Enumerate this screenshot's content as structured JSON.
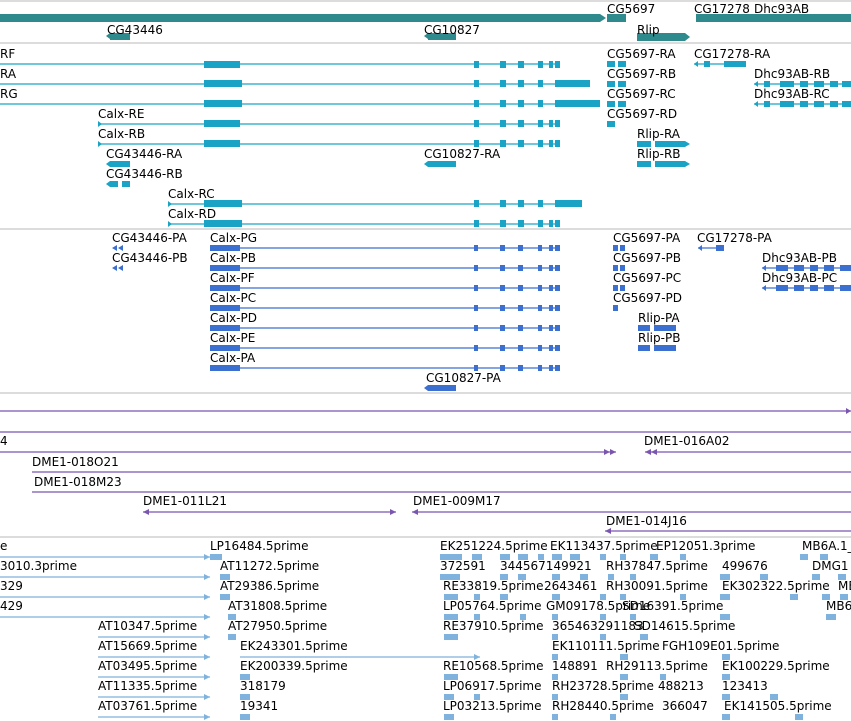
{
  "colors": {
    "gene": "#2f8a8d",
    "transcript": "#1aa3c4",
    "protein": "#3b6fd0",
    "clone": "#7b55b0",
    "est": "#7fb2dc",
    "divider": "#b9b9b9"
  },
  "tracks": {
    "genes": [
      {
        "label": "CG43446",
        "name": "gene-CG43446"
      },
      {
        "label": "CG10827",
        "name": "gene-CG10827"
      },
      {
        "label": "CG5697",
        "name": "gene-CG5697"
      },
      {
        "label": "CG17278",
        "name": "gene-CG17278"
      },
      {
        "label": "Dhc93AB",
        "name": "gene-Dhc93AB"
      },
      {
        "label": "Rlip",
        "name": "gene-Rlip"
      }
    ],
    "transcripts": [
      {
        "label": "RF",
        "name": "transcript-label-RF"
      },
      {
        "label": "RA",
        "name": "transcript-label-RA"
      },
      {
        "label": "RG",
        "name": "transcript-label-RG"
      },
      {
        "label": "Calx-RE",
        "name": "transcript-label-Calx-RE"
      },
      {
        "label": "Calx-RB",
        "name": "transcript-label-Calx-RB"
      },
      {
        "label": "CG43446-RA",
        "name": "transcript-label-CG43446-RA"
      },
      {
        "label": "CG43446-RB",
        "name": "transcript-label-CG43446-RB"
      },
      {
        "label": "Calx-RC",
        "name": "transcript-label-Calx-RC"
      },
      {
        "label": "Calx-RD",
        "name": "transcript-label-Calx-RD"
      },
      {
        "label": "CG10827-RA",
        "name": "transcript-label-CG10827-RA"
      },
      {
        "label": "CG5697-RA",
        "name": "transcript-label-CG5697-RA"
      },
      {
        "label": "CG5697-RB",
        "name": "transcript-label-CG5697-RB"
      },
      {
        "label": "CG5697-RC",
        "name": "transcript-label-CG5697-RC"
      },
      {
        "label": "CG5697-RD",
        "name": "transcript-label-CG5697-RD"
      },
      {
        "label": "Rlip-RA",
        "name": "transcript-label-Rlip-RA"
      },
      {
        "label": "Rlip-RB",
        "name": "transcript-label-Rlip-RB"
      },
      {
        "label": "CG17278-RA",
        "name": "transcript-label-CG17278-RA"
      },
      {
        "label": "Dhc93AB-RB",
        "name": "transcript-label-Dhc93AB-RB"
      },
      {
        "label": "Dhc93AB-RC",
        "name": "transcript-label-Dhc93AB-RC"
      }
    ],
    "proteins": [
      {
        "label": "CG43446-PA",
        "name": "protein-label-CG43446-PA"
      },
      {
        "label": "CG43446-PB",
        "name": "protein-label-CG43446-PB"
      },
      {
        "label": "Calx-PG",
        "name": "protein-label-Calx-PG"
      },
      {
        "label": "Calx-PB",
        "name": "protein-label-Calx-PB"
      },
      {
        "label": "Calx-PF",
        "name": "protein-label-Calx-PF"
      },
      {
        "label": "Calx-PC",
        "name": "protein-label-Calx-PC"
      },
      {
        "label": "Calx-PD",
        "name": "protein-label-Calx-PD"
      },
      {
        "label": "Calx-PE",
        "name": "protein-label-Calx-PE"
      },
      {
        "label": "Calx-PA",
        "name": "protein-label-Calx-PA"
      },
      {
        "label": "CG10827-PA",
        "name": "protein-label-CG10827-PA"
      },
      {
        "label": "CG5697-PA",
        "name": "protein-label-CG5697-PA"
      },
      {
        "label": "CG5697-PB",
        "name": "protein-label-CG5697-PB"
      },
      {
        "label": "CG5697-PC",
        "name": "protein-label-CG5697-PC"
      },
      {
        "label": "CG5697-PD",
        "name": "protein-label-CG5697-PD"
      },
      {
        "label": "Rlip-PA",
        "name": "protein-label-Rlip-PA"
      },
      {
        "label": "Rlip-PB",
        "name": "protein-label-Rlip-PB"
      },
      {
        "label": "CG17278-PA",
        "name": "protein-label-CG17278-PA"
      },
      {
        "label": "Dhc93AB-PB",
        "name": "protein-label-Dhc93AB-PB"
      },
      {
        "label": "Dhc93AB-PC",
        "name": "protein-label-Dhc93AB-PC"
      }
    ],
    "clones": [
      {
        "label": "4",
        "name": "clone-label-partial-4"
      },
      {
        "label": "DME1-016A02",
        "name": "clone-label-DME1-016A02"
      },
      {
        "label": "DME1-018O21",
        "name": "clone-label-DME1-018O21"
      },
      {
        "label": "DME1-018M23",
        "name": "clone-label-DME1-018M23"
      },
      {
        "label": "DME1-011L21",
        "name": "clone-label-DME1-011L21"
      },
      {
        "label": "DME1-009M17",
        "name": "clone-label-DME1-009M17"
      },
      {
        "label": "DME1-014J16",
        "name": "clone-label-DME1-014J16"
      }
    ],
    "ests": [
      {
        "label": "e",
        "name": "est-label-partial-e"
      },
      {
        "label": "3010.3prime",
        "name": "est-label-3010.3prime"
      },
      {
        "label": "329",
        "name": "est-label-329"
      },
      {
        "label": "429",
        "name": "est-label-429"
      },
      {
        "label": "LP16484.5prime",
        "name": "est-label-LP16484.5prime"
      },
      {
        "label": "AT11272.5prime",
        "name": "est-label-AT11272.5prime"
      },
      {
        "label": "AT29386.5prime",
        "name": "est-label-AT29386.5prime"
      },
      {
        "label": "AT31808.5prime",
        "name": "est-label-AT31808.5prime"
      },
      {
        "label": "AT10347.5prime",
        "name": "est-label-AT10347.5prime"
      },
      {
        "label": "AT27950.5prime",
        "name": "est-label-AT27950.5prime"
      },
      {
        "label": "AT15669.5prime",
        "name": "est-label-AT15669.5prime"
      },
      {
        "label": "EK243301.5prime",
        "name": "est-label-EK243301.5prime"
      },
      {
        "label": "AT03495.5prime",
        "name": "est-label-AT03495.5prime"
      },
      {
        "label": "EK200339.5prime",
        "name": "est-label-EK200339.5prime"
      },
      {
        "label": "AT11335.5prime",
        "name": "est-label-AT11335.5prime"
      },
      {
        "label": "318179",
        "name": "est-label-318179"
      },
      {
        "label": "AT03761.5prime",
        "name": "est-label-AT03761.5prime"
      },
      {
        "label": "19341",
        "name": "est-label-19341"
      },
      {
        "label": "EK251224.5prime",
        "name": "est-label-EK251224.5prime"
      },
      {
        "label": "EK113437.5prime",
        "name": "est-label-EK113437.5prime"
      },
      {
        "label": "EP12051.3prime",
        "name": "est-label-EP12051.3prime"
      },
      {
        "label": "MB6A.1_",
        "name": "est-label-MB6A.1"
      },
      {
        "label": "372591",
        "name": "est-label-372591"
      },
      {
        "label": "344567149921",
        "name": "est-label-344567149921"
      },
      {
        "label": "499676",
        "name": "est-label-499676"
      },
      {
        "label": "DMG1",
        "name": "est-label-DMG1"
      },
      {
        "label": "RE33819.5prime",
        "name": "est-label-RE33819.5prime"
      },
      {
        "label": "2643461",
        "name": "est-label-2643461"
      },
      {
        "label": "RH37847.5prime",
        "name": "est-label-RH37847.5prime"
      },
      {
        "label": "RH30091.5prime",
        "name": "est-label-RH30091.5prime"
      },
      {
        "label": "EK302322.5prime",
        "name": "est-label-EK302322.5prime"
      },
      {
        "label": "MB",
        "name": "est-label-MB"
      },
      {
        "label": "LP05764.5prime",
        "name": "est-label-LP05764.5prime"
      },
      {
        "label": "GM09178.5prime",
        "name": "est-label-GM09178.5prime"
      },
      {
        "label": "SD16391.5prime",
        "name": "est-label-SD16391.5prime"
      },
      {
        "label": "MB6",
        "name": "est-label-MB6"
      },
      {
        "label": "RE37910.5prime",
        "name": "est-label-RE37910.5prime"
      },
      {
        "label": "365463291183",
        "name": "est-label-365463291183"
      },
      {
        "label": "SD14615.5prime",
        "name": "est-label-SD14615.5prime"
      },
      {
        "label": "EK110111.5prime",
        "name": "est-label-EK110111.5prime"
      },
      {
        "label": "FGH109E01.5prime",
        "name": "est-label-FGH109E01.5prime"
      },
      {
        "label": "RE10568.5prime",
        "name": "est-label-RE10568.5prime"
      },
      {
        "label": "148891",
        "name": "est-label-148891"
      },
      {
        "label": "RH29113.5prime",
        "name": "est-label-RH29113.5prime"
      },
      {
        "label": "EK100229.5prime",
        "name": "est-label-EK100229.5prime"
      },
      {
        "label": "LP06917.5prime",
        "name": "est-label-LP06917.5prime"
      },
      {
        "label": "RH23728.5prime",
        "name": "est-label-RH23728.5prime"
      },
      {
        "label": "488213",
        "name": "est-label-488213"
      },
      {
        "label": "123413",
        "name": "est-label-123413"
      },
      {
        "label": "LP03213.5prime",
        "name": "est-label-LP03213.5prime"
      },
      {
        "label": "RH28440.5prime",
        "name": "est-label-RH28440.5prime"
      },
      {
        "label": "366047",
        "name": "est-label-366047"
      },
      {
        "label": "EK141505.5prime",
        "name": "est-label-EK141505.5prime"
      }
    ]
  }
}
